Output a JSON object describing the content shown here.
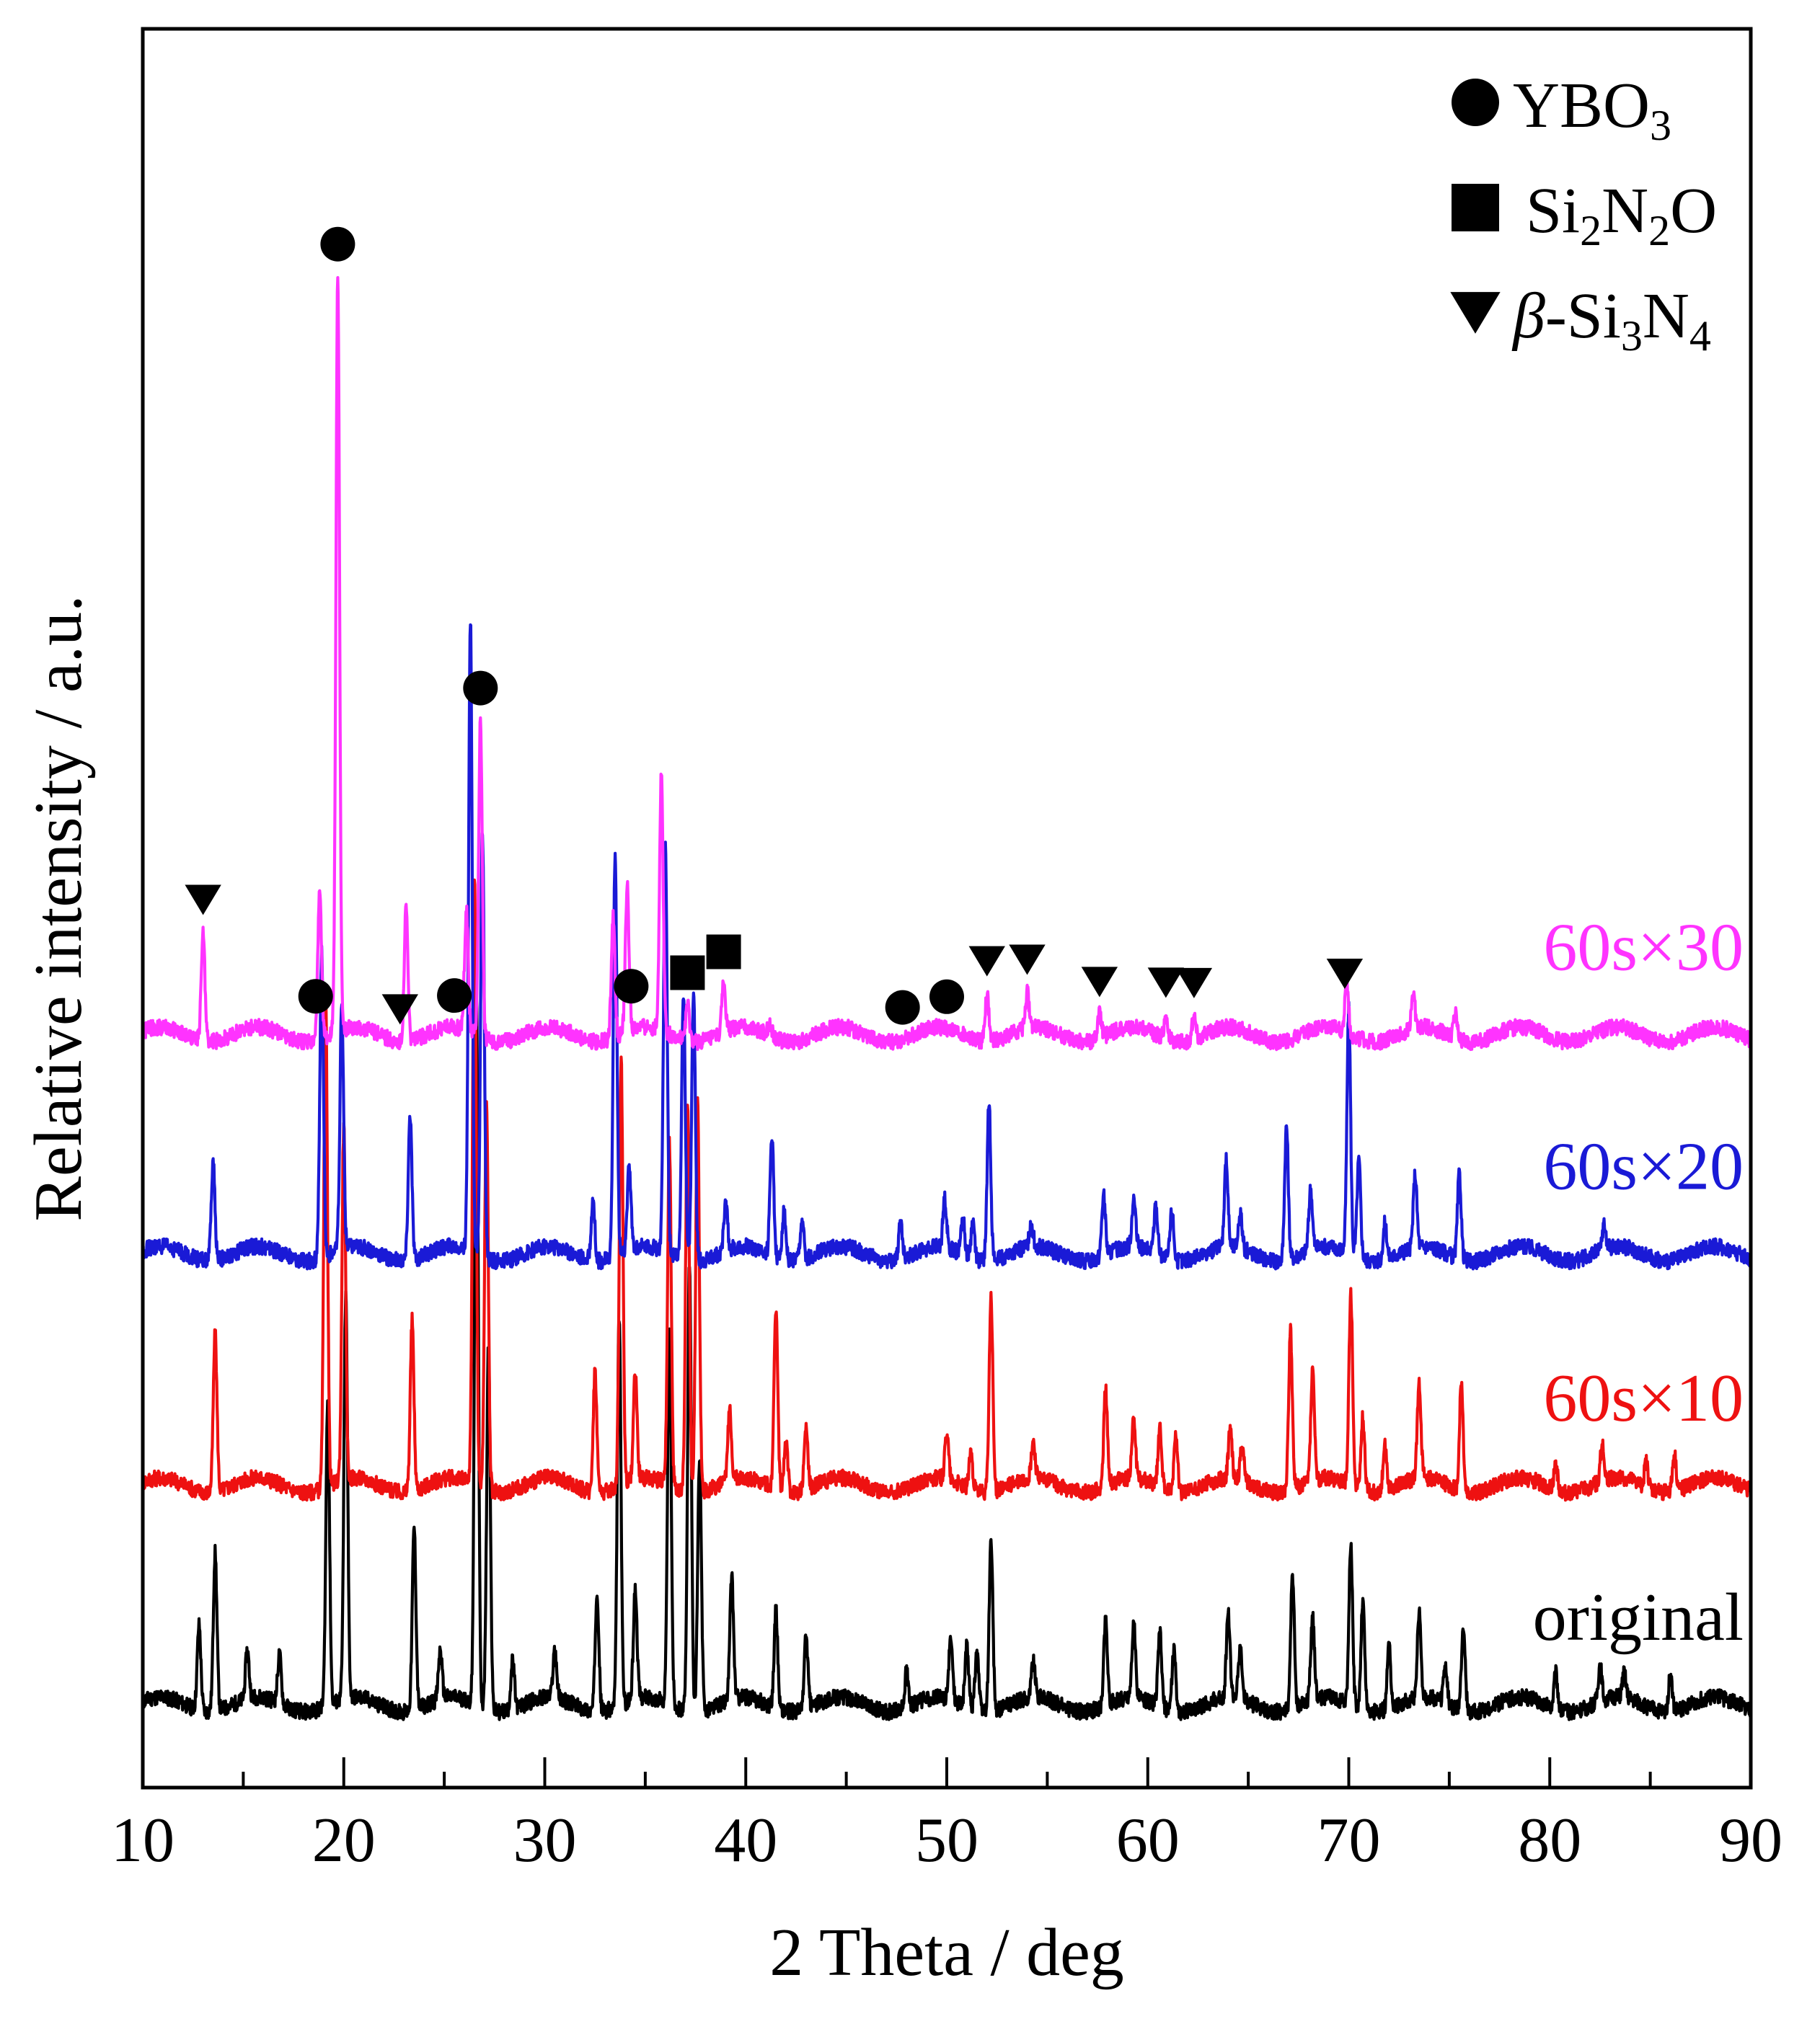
{
  "chart_data": {
    "type": "line",
    "title": "",
    "xlabel": "2 Theta / deg",
    "ylabel": "Relative intensity / a.u.",
    "xlim": [
      10,
      90
    ],
    "x_ticks": [
      10,
      20,
      30,
      40,
      50,
      60,
      70,
      80,
      90
    ],
    "y_ticks_shown": false,
    "legend_position": "top-right",
    "legend": [
      {
        "symbol": "circle",
        "label": "YBO3",
        "parts": [
          "YBO",
          "3",
          ""
        ]
      },
      {
        "symbol": "square",
        "label": "Si2N2O",
        "parts": [
          "Si",
          "2",
          "N",
          "2",
          "O"
        ]
      },
      {
        "symbol": "triangle-down",
        "label": "β-Si3N4",
        "parts": [
          "β",
          "-Si",
          "3",
          "N",
          "4"
        ]
      }
    ],
    "series": [
      {
        "name": "original",
        "color": "#000000",
        "baseline": 0,
        "peaks": [
          [
            12.8,
            7
          ],
          [
            13.6,
            13
          ],
          [
            15.2,
            4
          ],
          [
            16.8,
            4
          ],
          [
            19.2,
            25
          ],
          [
            20.1,
            33
          ],
          [
            23.5,
            15
          ],
          [
            24.8,
            4
          ],
          [
            26.6,
            58
          ],
          [
            27.2,
            30
          ],
          [
            28.4,
            4
          ],
          [
            30.5,
            4
          ],
          [
            32.6,
            10
          ],
          [
            33.7,
            32
          ],
          [
            34.5,
            9
          ],
          [
            36.2,
            31
          ],
          [
            37.2,
            37
          ],
          [
            37.7,
            21
          ],
          [
            39.3,
            10
          ],
          [
            41.5,
            8
          ],
          [
            43.0,
            6
          ],
          [
            48.0,
            3
          ],
          [
            50.2,
            5
          ],
          [
            51.0,
            5
          ],
          [
            51.5,
            5
          ],
          [
            52.2,
            14
          ],
          [
            54.3,
            3
          ],
          [
            57.9,
            7
          ],
          [
            59.3,
            6
          ],
          [
            60.6,
            6
          ],
          [
            61.3,
            5
          ],
          [
            64.0,
            7
          ],
          [
            64.6,
            4
          ],
          [
            67.2,
            11
          ],
          [
            68.2,
            7
          ],
          [
            70.1,
            13
          ],
          [
            70.7,
            9
          ],
          [
            72.0,
            5
          ],
          [
            73.5,
            7
          ],
          [
            74.8,
            3
          ],
          [
            75.7,
            7
          ],
          [
            80.3,
            3
          ],
          [
            82.5,
            3
          ],
          [
            83.7,
            2
          ],
          [
            86.0,
            3
          ]
        ]
      },
      {
        "name": "60s×10",
        "color": "#ee1111",
        "baseline": 18,
        "peaks": [
          [
            13.6,
            13
          ],
          [
            19.1,
            40
          ],
          [
            20.0,
            29
          ],
          [
            23.4,
            14
          ],
          [
            26.5,
            50
          ],
          [
            27.1,
            32
          ],
          [
            32.5,
            10
          ],
          [
            33.8,
            35
          ],
          [
            34.5,
            9
          ],
          [
            36.2,
            28
          ],
          [
            37.1,
            32
          ],
          [
            37.6,
            32
          ],
          [
            39.2,
            6
          ],
          [
            41.5,
            15
          ],
          [
            42.0,
            4
          ],
          [
            43.0,
            5
          ],
          [
            50.0,
            4
          ],
          [
            51.2,
            3
          ],
          [
            52.2,
            16
          ],
          [
            54.3,
            3
          ],
          [
            57.9,
            8
          ],
          [
            59.3,
            5
          ],
          [
            60.6,
            5
          ],
          [
            61.4,
            5
          ],
          [
            64.1,
            4
          ],
          [
            64.7,
            3
          ],
          [
            67.1,
            13
          ],
          [
            68.2,
            9
          ],
          [
            70.1,
            16
          ],
          [
            70.7,
            6
          ],
          [
            71.8,
            4
          ],
          [
            73.5,
            8
          ],
          [
            75.6,
            9
          ],
          [
            80.3,
            2
          ],
          [
            82.6,
            3
          ],
          [
            84.8,
            2
          ],
          [
            86.2,
            3
          ]
        ]
      },
      {
        "name": "60s×20",
        "color": "#1a1ad6",
        "baseline": 37,
        "peaks": [
          [
            13.5,
            8
          ],
          [
            18.9,
            25
          ],
          [
            19.9,
            20
          ],
          [
            23.3,
            12
          ],
          [
            26.3,
            52
          ],
          [
            26.9,
            35
          ],
          [
            32.4,
            5
          ],
          [
            33.5,
            33
          ],
          [
            34.2,
            7
          ],
          [
            36.0,
            33
          ],
          [
            36.9,
            22
          ],
          [
            37.4,
            22
          ],
          [
            39.0,
            4
          ],
          [
            41.3,
            10
          ],
          [
            41.9,
            4
          ],
          [
            42.8,
            3
          ],
          [
            47.7,
            3
          ],
          [
            49.9,
            4
          ],
          [
            50.8,
            3
          ],
          [
            51.3,
            3
          ],
          [
            52.1,
            13
          ],
          [
            54.2,
            2
          ],
          [
            57.8,
            5
          ],
          [
            59.3,
            4
          ],
          [
            60.4,
            4
          ],
          [
            61.2,
            4
          ],
          [
            63.9,
            7
          ],
          [
            64.6,
            3
          ],
          [
            66.9,
            11
          ],
          [
            68.1,
            5
          ],
          [
            70.0,
            20
          ],
          [
            70.5,
            8
          ],
          [
            71.8,
            3
          ],
          [
            73.3,
            6
          ],
          [
            75.5,
            7
          ],
          [
            82.7,
            2
          ]
        ]
      },
      {
        "name": "60s×30",
        "color": "#ff33ff",
        "baseline": 55,
        "peaks": [
          [
            13.0,
            9
          ],
          [
            18.8,
            12
          ],
          [
            19.7,
            62
          ],
          [
            23.1,
            11
          ],
          [
            26.1,
            10
          ],
          [
            26.8,
            26
          ],
          [
            33.4,
            10
          ],
          [
            34.1,
            12
          ],
          [
            35.8,
            21
          ],
          [
            37.1,
            3
          ],
          [
            38.9,
            4
          ],
          [
            41.2,
            1
          ],
          [
            52.0,
            4
          ],
          [
            54.0,
            3
          ],
          [
            57.6,
            2
          ],
          [
            60.9,
            2
          ],
          [
            62.3,
            2
          ],
          [
            69.9,
            4
          ],
          [
            73.2,
            3
          ],
          [
            75.3,
            2
          ]
        ]
      }
    ],
    "markers": [
      {
        "symbol": "triangle-down",
        "x": 13.0,
        "series": "60s×30"
      },
      {
        "symbol": "circle",
        "x": 18.6,
        "series": "60s×30"
      },
      {
        "symbol": "circle",
        "x": 19.7,
        "series": "60s×30"
      },
      {
        "symbol": "triangle-down",
        "x": 22.8,
        "series": "60s×30"
      },
      {
        "symbol": "circle",
        "x": 25.5,
        "series": "60s×30"
      },
      {
        "symbol": "circle",
        "x": 26.8,
        "series": "60s×30"
      },
      {
        "symbol": "circle",
        "x": 34.3,
        "series": "60s×30"
      },
      {
        "symbol": "square",
        "x": 37.1,
        "series": "60s×30"
      },
      {
        "symbol": "square",
        "x": 38.9,
        "series": "60s×30"
      },
      {
        "symbol": "circle",
        "x": 47.8,
        "series": "60s×30"
      },
      {
        "symbol": "circle",
        "x": 50.0,
        "series": "60s×30"
      },
      {
        "symbol": "triangle-down",
        "x": 52.0,
        "series": "60s×30"
      },
      {
        "symbol": "triangle-down",
        "x": 54.0,
        "series": "60s×30"
      },
      {
        "symbol": "triangle-down",
        "x": 57.6,
        "series": "60s×30"
      },
      {
        "symbol": "triangle-down",
        "x": 60.9,
        "series": "60s×30"
      },
      {
        "symbol": "triangle-down",
        "x": 62.3,
        "series": "60s×30"
      },
      {
        "symbol": "triangle-down",
        "x": 69.8,
        "series": "60s×30"
      }
    ]
  }
}
